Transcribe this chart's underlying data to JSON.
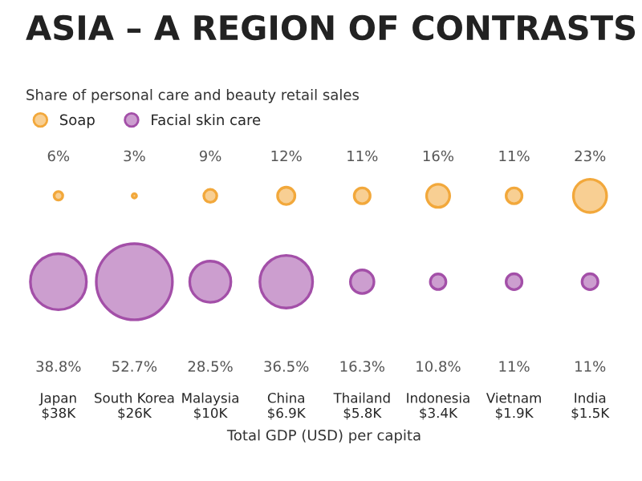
{
  "chart_data": {
    "type": "other",
    "title": "ASIA – A REGION OF CONTRASTS",
    "subtitle": "Share of personal care and beauty retail sales",
    "xlabel": "Total GDP (USD) per capita",
    "categories": [
      "Japan\n$38K",
      "South Korea\n$26K",
      "Malaysia\n$10K",
      "China\n$6.9K",
      "Thailand\n$5.8K",
      "Indonesia\n$3.4K",
      "Vietnam\n$1.9K",
      "India\n$1.5K"
    ],
    "series": [
      {
        "name": "Soap",
        "color": "#f2a83b",
        "values": [
          6,
          3,
          9,
          12,
          11,
          16,
          11,
          23
        ],
        "value_labels": [
          "6%",
          "3%",
          "9%",
          "12%",
          "11%",
          "16%",
          "11%",
          "23%"
        ]
      },
      {
        "name": "Facial skin care",
        "color": "#a34fa8",
        "values": [
          38.8,
          52.7,
          28.5,
          36.5,
          16.3,
          10.8,
          11,
          11
        ],
        "value_labels": [
          "38.8%",
          "52.7%",
          "28.5%",
          "36.5%",
          "16.3%",
          "10.8%",
          "11%",
          "11%"
        ]
      }
    ],
    "legend": "top left"
  }
}
